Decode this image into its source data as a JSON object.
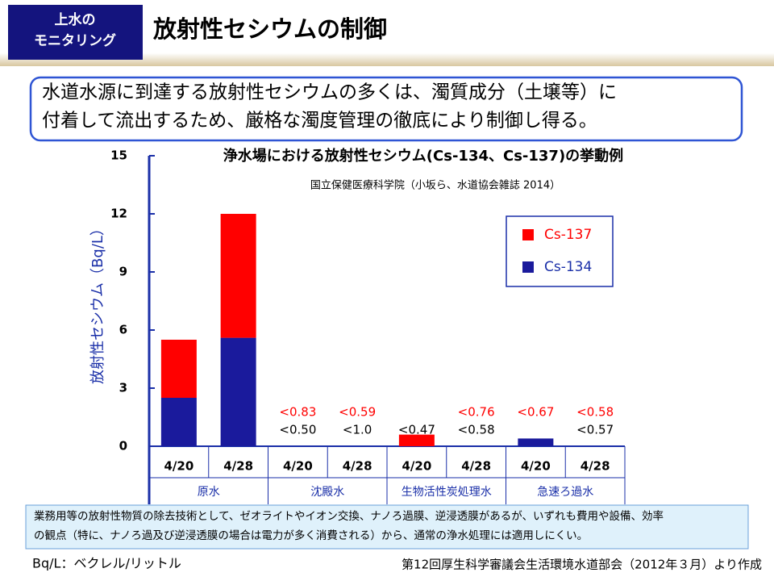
{
  "header": {
    "badge": [
      "上水の",
      "モニタリング"
    ],
    "title": "放射性セシウムの制御"
  },
  "callout": [
    "水道水源に到達する放射性セシウムの多くは、濁質成分（土壌等）に",
    "付着して流出するため、厳格な濁度管理の徹底により制御し得る。"
  ],
  "chart_data": {
    "type": "bar",
    "stacked": true,
    "title": "浄水場における放射性セシウム(Cs-134、Cs-137)の挙動例",
    "subtitle": "国立保健医療科学院（小坂ら、水道協会雑誌 2014）",
    "y_label": "放射性セシウム（Bq/L）",
    "categories": [
      "4/20",
      "4/28",
      "4/20",
      "4/28",
      "4/20",
      "4/28",
      "4/20",
      "4/28"
    ],
    "groups": [
      "原水",
      "沈殿水",
      "生物活性炭処理水",
      "急速ろ過水"
    ],
    "series": [
      {
        "name": "Cs-134",
        "color": "#1a1a9c",
        "values": [
          2.5,
          5.6,
          null,
          null,
          null,
          null,
          0.4,
          null
        ],
        "value_labels": [
          null,
          null,
          "<0.50",
          "<1.0",
          "<0.47",
          "<0.58",
          null,
          "<0.57"
        ]
      },
      {
        "name": "Cs-137",
        "color": "#ff0000",
        "values": [
          3.0,
          6.4,
          null,
          null,
          0.6,
          null,
          null,
          null
        ],
        "value_labels": [
          null,
          null,
          "<0.83",
          "<0.59",
          null,
          "<0.76",
          "<0.67",
          "<0.58"
        ]
      }
    ],
    "ylim": [
      0,
      15
    ],
    "yticks": [
      0,
      3,
      6,
      9,
      12,
      15
    ],
    "legend": "upper-right"
  },
  "note": [
    "業務用等の放射性物質の除去技術として、ゼオライトやイオン交換、ナノろ過膜、逆浸透膜があるが、いずれも費用や設備、効率",
    "の観点（特に、ナノろ過及び逆浸透膜の場合は電力が多く消費される）から、通常の浄水処理には適用しにくい。"
  ],
  "footer": {
    "unit": "Bq/L：ベクレル/リットル",
    "source": "第12回厚生科学審議会生活環境水道部会（2012年３月）より作成"
  }
}
